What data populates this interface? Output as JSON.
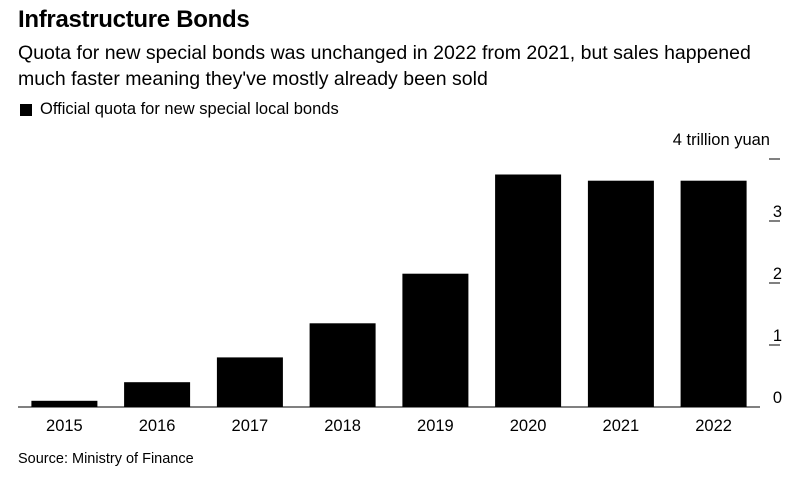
{
  "header": {
    "title": "Infrastructure Bonds",
    "subtitle": "Quota for new special bonds was unchanged in 2022 from 2021, but sales happened much faster meaning they've mostly already been sold"
  },
  "legend": {
    "label": "Official quota for new special local bonds"
  },
  "footer": {
    "source": "Source: Ministry of Finance"
  },
  "colors": {
    "bar": "#000000",
    "axis": "#000000"
  },
  "chart_data": {
    "type": "bar",
    "title": "Infrastructure Bonds",
    "subtitle": "Quota for new special bonds was unchanged in 2022 from 2021, but sales happened much faster meaning they've mostly already been sold",
    "categories": [
      "2015",
      "2016",
      "2017",
      "2018",
      "2019",
      "2020",
      "2021",
      "2022"
    ],
    "series": [
      {
        "name": "Official quota for new special local bonds",
        "values": [
          0.1,
          0.4,
          0.8,
          1.35,
          2.15,
          3.75,
          3.65,
          3.65
        ]
      }
    ],
    "unit_label": "4 trillion yuan",
    "ylim": [
      0,
      4
    ],
    "yticks": [
      0,
      1,
      2,
      3,
      4
    ],
    "ytick_labels": [
      "0",
      "1",
      "2",
      "3",
      ""
    ],
    "xlabel": "",
    "ylabel": "",
    "grid": false,
    "legend_position": "top-left",
    "y_axis_side": "right"
  }
}
